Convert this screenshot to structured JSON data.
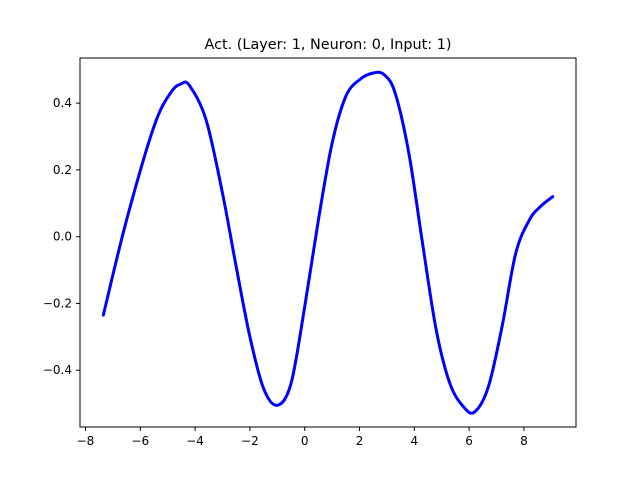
{
  "chart_data": {
    "type": "line",
    "title": "Act. (Layer: 1, Neuron: 0, Input: 1)",
    "xlabel": "",
    "ylabel": "",
    "xlim": [
      -8.2,
      9.9
    ],
    "ylim": [
      -0.57,
      0.535
    ],
    "x_ticks": [
      -8,
      -6,
      -4,
      -2,
      0,
      2,
      4,
      6,
      8
    ],
    "x_tick_labels": [
      "−8",
      "−6",
      "−4",
      "−2",
      "0",
      "2",
      "4",
      "6",
      "8"
    ],
    "y_ticks": [
      0.4,
      0.2,
      0.0,
      -0.2,
      -0.4
    ],
    "y_tick_labels": [
      "0.4",
      "0.2",
      "0.0",
      "−0.2",
      "−0.4"
    ],
    "grid": false,
    "series": [
      {
        "color": "#0000ff",
        "x": [
          -7.35,
          -6.5,
          -5.5,
          -4.9,
          -4.5,
          -4.2,
          -3.6,
          -3.0,
          -2.5,
          -2.0,
          -1.5,
          -1.0,
          -0.5,
          0.0,
          0.5,
          1.0,
          1.5,
          2.0,
          2.5,
          2.9,
          3.3,
          3.8,
          4.3,
          4.8,
          5.3,
          5.8,
          6.2,
          6.7,
          7.2,
          7.7,
          8.2,
          8.6,
          9.05
        ],
        "y": [
          -0.235,
          0.05,
          0.33,
          0.43,
          0.458,
          0.452,
          0.35,
          0.13,
          -0.09,
          -0.3,
          -0.455,
          -0.505,
          -0.44,
          -0.21,
          0.05,
          0.28,
          0.42,
          0.47,
          0.49,
          0.485,
          0.43,
          0.25,
          -0.02,
          -0.28,
          -0.44,
          -0.51,
          -0.525,
          -0.45,
          -0.27,
          -0.05,
          0.05,
          0.09,
          0.12
        ]
      }
    ]
  }
}
